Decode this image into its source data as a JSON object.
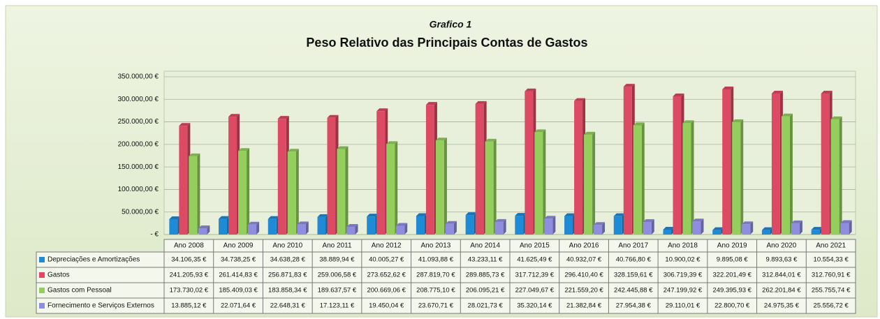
{
  "chart_data": {
    "type": "bar",
    "subtitle": "Grafico 1",
    "title": "Peso Relativo das Principais Contas de Gastos",
    "categories": [
      "Ano 2008",
      "Ano 2009",
      "Ano 2010",
      "Ano 2011",
      "Ano 2012",
      "Ano 2013",
      "Ano 2014",
      "Ano 2015",
      "Ano 2016",
      "Ano 2017",
      "Ano 2018",
      "Ano 2019",
      "Ano 2020",
      "Ano 2021"
    ],
    "series": [
      {
        "name": "Depreciações e Amortizações",
        "color": "#1f8ad6",
        "values": [
          34106.35,
          34738.25,
          34638.28,
          38889.94,
          40005.27,
          41093.88,
          43233.11,
          41625.49,
          40932.07,
          40766.8,
          10900.02,
          9895.08,
          9893.63,
          10554.33
        ],
        "value_labels": [
          "34.106,35 €",
          "34.738,25 €",
          "34.638,28 €",
          "38.889,94 €",
          "40.005,27 €",
          "41.093,88 €",
          "43.233,11 €",
          "41.625,49 €",
          "40.932,07 €",
          "40.766,80 €",
          "10.900,02 €",
          "9.895,08 €",
          "9.893,63 €",
          "10.554,33 €"
        ]
      },
      {
        "name": "Gastos",
        "color": "#dc4a63",
        "values": [
          241205.93,
          261414.83,
          256871.83,
          259006.58,
          273652.62,
          287819.7,
          289885.73,
          317712.39,
          296410.4,
          328159.61,
          306719.39,
          322201.49,
          312844.01,
          312760.91
        ],
        "value_labels": [
          "241.205,93 €",
          "261.414,83 €",
          "256.871,83 €",
          "259.006,58 €",
          "273.652,62 €",
          "287.819,70 €",
          "289.885,73 €",
          "317.712,39 €",
          "296.410,40 €",
          "328.159,61 €",
          "306.719,39 €",
          "322.201,49 €",
          "312.844,01 €",
          "312.760,91 €"
        ]
      },
      {
        "name": "Gastos com Pessoal",
        "color": "#94cf5e",
        "values": [
          173730.02,
          185409.03,
          183858.34,
          189637.57,
          200669.06,
          208775.1,
          206095.21,
          227049.67,
          221559.2,
          242445.88,
          247199.92,
          249395.93,
          262201.84,
          255755.74
        ],
        "value_labels": [
          "173.730,02 €",
          "185.409,03 €",
          "183.858,34 €",
          "189.637,57 €",
          "200.669,06 €",
          "208.775,10 €",
          "206.095,21 €",
          "227.049,67 €",
          "221.559,20 €",
          "242.445,88 €",
          "247.199,92 €",
          "249.395,93 €",
          "262.201,84 €",
          "255.755,74 €"
        ]
      },
      {
        "name": "Fornecimento e Serviços Externos",
        "color": "#8f8de0",
        "values": [
          13885.12,
          22071.64,
          22648.31,
          17123.11,
          19450.04,
          23670.71,
          28021.73,
          35320.14,
          21382.84,
          27954.38,
          29110.01,
          22800.7,
          24975.35,
          25556.72
        ],
        "value_labels": [
          "13.885,12 €",
          "22.071,64 €",
          "22.648,31 €",
          "17.123,11 €",
          "19.450,04 €",
          "23.670,71 €",
          "28.021,73 €",
          "35.320,14 €",
          "21.382,84 €",
          "27.954,38 €",
          "29.110,01 €",
          "22.800,70 €",
          "24.975,35 €",
          "25.556,72 €"
        ]
      }
    ],
    "ylim": [
      0,
      350000
    ],
    "yticks": [
      {
        "value": 0,
        "label": "- €"
      },
      {
        "value": 50000,
        "label": "50.000,00 €"
      },
      {
        "value": 100000,
        "label": "100.000,00 €"
      },
      {
        "value": 150000,
        "label": "150.000,00 €"
      },
      {
        "value": 200000,
        "label": "200.000,00 €"
      },
      {
        "value": 250000,
        "label": "250.000,00 €"
      },
      {
        "value": 300000,
        "label": "300.000,00 €"
      },
      {
        "value": 350000,
        "label": "350.000,00 €"
      }
    ],
    "grid": true
  }
}
